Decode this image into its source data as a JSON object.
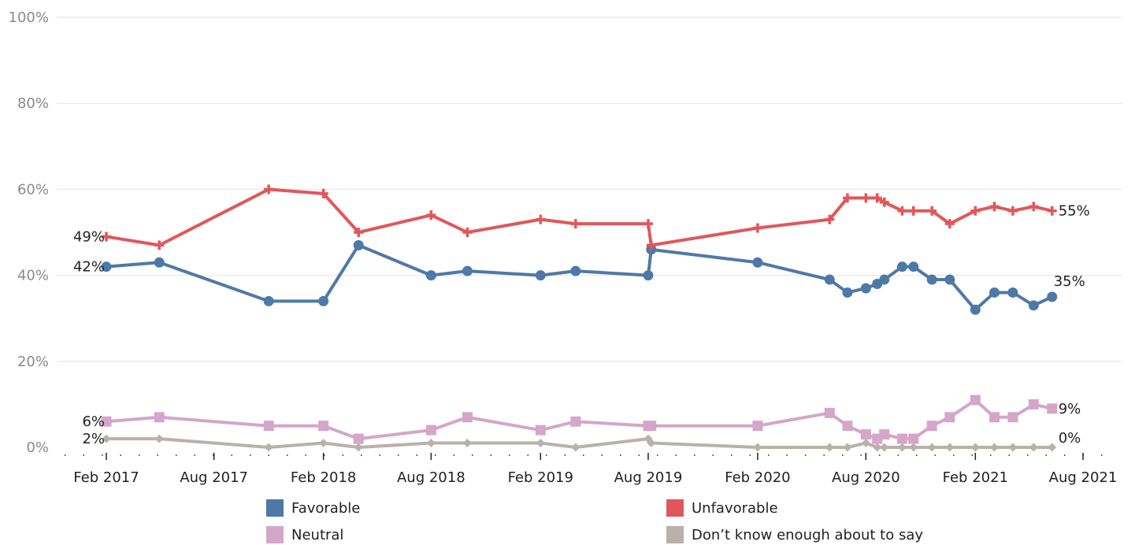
{
  "chart_data": {
    "type": "line",
    "ylim": [
      0,
      100
    ],
    "yticks": [
      0,
      20,
      40,
      60,
      80,
      100
    ],
    "ytick_labels": [
      "0%",
      "20%",
      "40%",
      "60%",
      "80%",
      "100%"
    ],
    "grid": true,
    "x_ticks": [
      {
        "date": "2017-02-01",
        "label": "Feb 2017"
      },
      {
        "date": "2017-08-01",
        "label": "Aug 2017"
      },
      {
        "date": "2018-02-01",
        "label": "Feb 2018"
      },
      {
        "date": "2018-08-01",
        "label": "Aug 2018"
      },
      {
        "date": "2019-02-01",
        "label": "Feb 2019"
      },
      {
        "date": "2019-08-01",
        "label": "Aug 2019"
      },
      {
        "date": "2020-02-01",
        "label": "Feb 2020"
      },
      {
        "date": "2020-08-01",
        "label": "Aug 2020"
      },
      {
        "date": "2021-02-01",
        "label": "Feb 2021"
      },
      {
        "date": "2021-08-01",
        "label": "Aug 2021"
      }
    ],
    "x": [
      "2017-02-01",
      "2017-05-01",
      "2017-11-01",
      "2018-02-01",
      "2018-04-01",
      "2018-08-01",
      "2018-10-01",
      "2019-02-01",
      "2019-04-01",
      "2019-08-01",
      "2019-08-06",
      "2020-02-01",
      "2020-06-01",
      "2020-07-01",
      "2020-08-01",
      "2020-08-20",
      "2020-09-01",
      "2020-10-01",
      "2020-10-20",
      "2020-11-20",
      "2020-12-20",
      "2021-02-01",
      "2021-03-05",
      "2021-04-05",
      "2021-05-10",
      "2021-06-10",
      "2021-07-15"
    ],
    "series": [
      {
        "name": "Favorable",
        "color": "#4e79a7",
        "marker": "circle",
        "values": [
          42,
          43,
          34,
          34,
          47,
          40,
          41,
          40,
          41,
          40,
          46,
          43,
          39,
          36,
          37,
          38,
          39,
          42,
          42,
          39,
          39,
          32,
          36,
          36,
          33,
          35,
          null
        ],
        "end_label": "35%",
        "start_label": "42%"
      },
      {
        "name": "Unfavorable",
        "color": "#e15759",
        "marker": "plus",
        "values": [
          49,
          47,
          60,
          59,
          50,
          54,
          50,
          53,
          52,
          52,
          47,
          51,
          53,
          58,
          58,
          58,
          57,
          55,
          55,
          55,
          52,
          55,
          56,
          55,
          56,
          55,
          null
        ],
        "end_label": "55%",
        "start_label": "49%"
      },
      {
        "name": "Neutral",
        "color": "#d4a6c8",
        "marker": "square",
        "values": [
          6,
          7,
          5,
          5,
          2,
          4,
          7,
          4,
          6,
          5,
          5,
          5,
          8,
          5,
          3,
          2,
          3,
          2,
          2,
          5,
          7,
          11,
          7,
          7,
          10,
          9,
          null
        ],
        "end_label": "9%",
        "start_label": "6%"
      },
      {
        "name": "Don’t know enough about to say",
        "color": "#bab0ac",
        "marker": "diamond",
        "values": [
          2,
          2,
          0,
          1,
          0,
          1,
          1,
          1,
          0,
          2,
          1,
          0,
          0,
          0,
          1,
          0,
          0,
          0,
          0,
          0,
          0,
          0,
          0,
          0,
          0,
          0,
          null
        ],
        "end_label": "0%",
        "start_label": "2%"
      }
    ],
    "legend_placement": "bottom"
  }
}
